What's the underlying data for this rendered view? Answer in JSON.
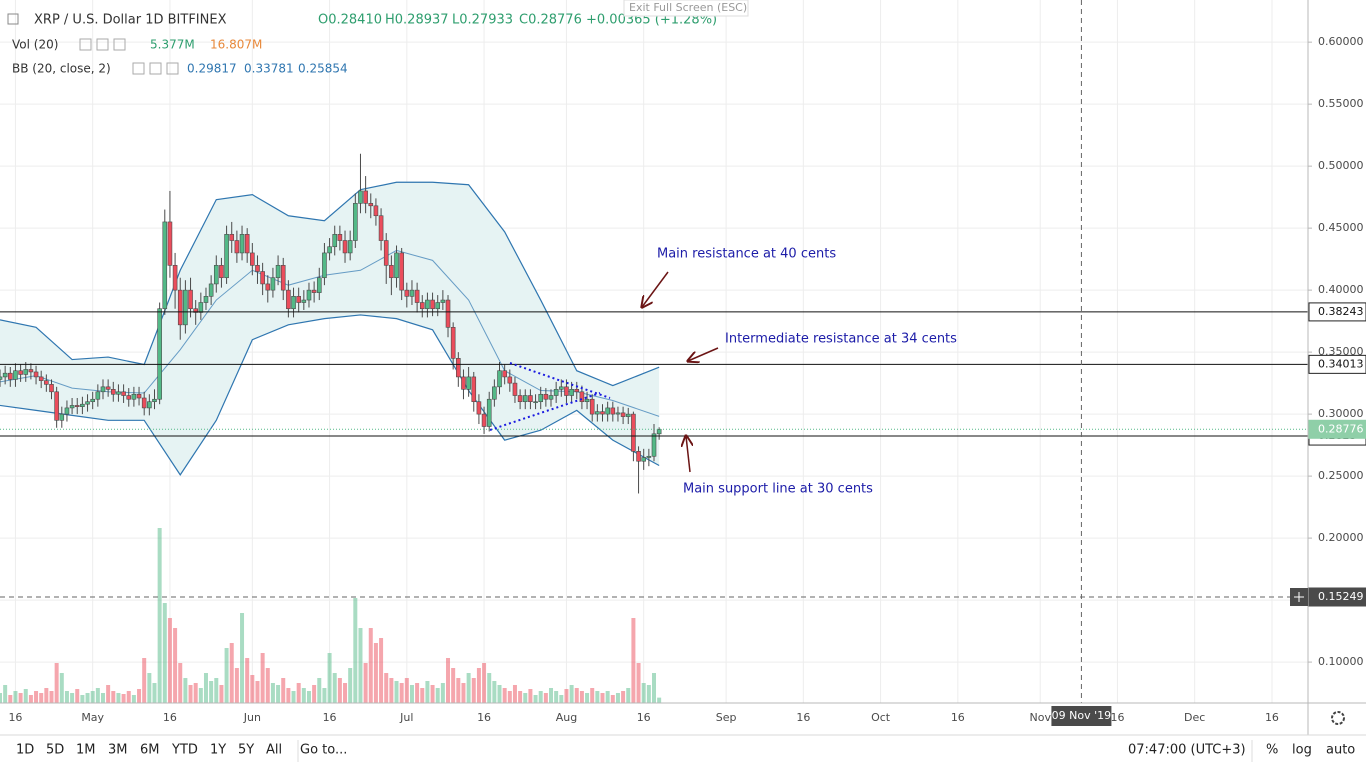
{
  "header": {
    "symbol": "XRP / U.S. Dollar  1D  BITFINEX",
    "open": "O0.28410",
    "high": "H0.28937",
    "low": "L0.27933",
    "close": "C0.28776",
    "change": "+0.00365 (+1.28%)",
    "exit_fullscreen": "Exit Full Screen (ESC)",
    "vol_label": "Vol (20)",
    "vol_value": "5.377M",
    "vol_ma": "16.807M",
    "bb_label": "BB (20, close, 2)",
    "bb_basis": "0.29817",
    "bb_upper": "0.33781",
    "bb_lower": "0.25854"
  },
  "toolbar": {
    "ranges": [
      "1D",
      "5D",
      "1M",
      "3M",
      "6M",
      "YTD",
      "1Y",
      "5Y",
      "All"
    ],
    "goto": "Go to...",
    "time": "07:47:00 (UTC+3)",
    "percent": "%",
    "log": "log",
    "auto": "auto"
  },
  "chart_data": {
    "type": "candlestick",
    "up_color": "#53b987",
    "down_color": "#eb4d5c",
    "x": [
      "2019-04-13",
      "2019-04-14",
      "2019-04-15",
      "2019-04-16",
      "2019-04-17",
      "2019-04-18",
      "2019-04-19",
      "2019-04-20",
      "2019-04-21",
      "2019-04-22",
      "2019-04-23",
      "2019-04-24",
      "2019-04-25",
      "2019-04-26",
      "2019-04-27",
      "2019-04-28",
      "2019-04-29",
      "2019-04-30",
      "2019-05-01",
      "2019-05-02",
      "2019-05-03",
      "2019-05-04",
      "2019-05-05",
      "2019-05-06",
      "2019-05-07",
      "2019-05-08",
      "2019-05-09",
      "2019-05-10",
      "2019-05-11",
      "2019-05-12",
      "2019-05-13",
      "2019-05-14",
      "2019-05-15",
      "2019-05-16",
      "2019-05-17",
      "2019-05-18",
      "2019-05-19",
      "2019-05-20",
      "2019-05-21",
      "2019-05-22",
      "2019-05-23",
      "2019-05-24",
      "2019-05-25",
      "2019-05-26",
      "2019-05-27",
      "2019-05-28",
      "2019-05-29",
      "2019-05-30",
      "2019-05-31",
      "2019-06-01",
      "2019-06-02",
      "2019-06-03",
      "2019-06-04",
      "2019-06-05",
      "2019-06-06",
      "2019-06-07",
      "2019-06-08",
      "2019-06-09",
      "2019-06-10",
      "2019-06-11",
      "2019-06-12",
      "2019-06-13",
      "2019-06-14",
      "2019-06-15",
      "2019-06-16",
      "2019-06-17",
      "2019-06-18",
      "2019-06-19",
      "2019-06-20",
      "2019-06-21",
      "2019-06-22",
      "2019-06-23",
      "2019-06-24",
      "2019-06-25",
      "2019-06-26",
      "2019-06-27",
      "2019-06-28",
      "2019-06-29",
      "2019-06-30",
      "2019-07-01",
      "2019-07-02",
      "2019-07-03",
      "2019-07-04",
      "2019-07-05",
      "2019-07-06",
      "2019-07-07",
      "2019-07-08",
      "2019-07-09",
      "2019-07-10",
      "2019-07-11",
      "2019-07-12",
      "2019-07-13",
      "2019-07-14",
      "2019-07-15",
      "2019-07-16",
      "2019-07-17",
      "2019-07-18",
      "2019-07-19",
      "2019-07-20",
      "2019-07-21",
      "2019-07-22",
      "2019-07-23",
      "2019-07-24",
      "2019-07-25",
      "2019-07-26",
      "2019-07-27",
      "2019-07-28",
      "2019-07-29",
      "2019-07-30",
      "2019-07-31",
      "2019-08-01",
      "2019-08-02",
      "2019-08-03",
      "2019-08-04",
      "2019-08-05",
      "2019-08-06",
      "2019-08-07",
      "2019-08-08",
      "2019-08-09",
      "2019-08-10",
      "2019-08-11",
      "2019-08-12",
      "2019-08-13",
      "2019-08-14",
      "2019-08-15",
      "2019-08-16",
      "2019-08-17",
      "2019-08-18",
      "2019-08-19"
    ],
    "candles": [
      [
        0.328,
        0.336,
        0.322,
        0.33
      ],
      [
        0.33,
        0.339,
        0.324,
        0.333
      ],
      [
        0.333,
        0.338,
        0.322,
        0.328
      ],
      [
        0.328,
        0.341,
        0.322,
        0.335
      ],
      [
        0.335,
        0.34,
        0.326,
        0.332
      ],
      [
        0.332,
        0.342,
        0.326,
        0.336
      ],
      [
        0.336,
        0.341,
        0.328,
        0.334
      ],
      [
        0.334,
        0.339,
        0.324,
        0.33
      ],
      [
        0.33,
        0.335,
        0.321,
        0.327
      ],
      [
        0.327,
        0.332,
        0.318,
        0.324
      ],
      [
        0.324,
        0.328,
        0.312,
        0.318
      ],
      [
        0.318,
        0.322,
        0.289,
        0.295
      ],
      [
        0.295,
        0.306,
        0.289,
        0.3
      ],
      [
        0.3,
        0.311,
        0.294,
        0.305
      ],
      [
        0.305,
        0.313,
        0.3,
        0.307
      ],
      [
        0.307,
        0.313,
        0.3,
        0.306
      ],
      [
        0.306,
        0.314,
        0.3,
        0.308
      ],
      [
        0.308,
        0.316,
        0.302,
        0.31
      ],
      [
        0.31,
        0.318,
        0.304,
        0.312
      ],
      [
        0.312,
        0.324,
        0.306,
        0.318
      ],
      [
        0.318,
        0.328,
        0.312,
        0.322
      ],
      [
        0.322,
        0.328,
        0.314,
        0.32
      ],
      [
        0.32,
        0.326,
        0.31,
        0.316
      ],
      [
        0.316,
        0.324,
        0.31,
        0.318
      ],
      [
        0.318,
        0.324,
        0.309,
        0.315
      ],
      [
        0.315,
        0.321,
        0.306,
        0.312
      ],
      [
        0.312,
        0.322,
        0.306,
        0.316
      ],
      [
        0.316,
        0.322,
        0.307,
        0.313
      ],
      [
        0.313,
        0.318,
        0.299,
        0.305
      ],
      [
        0.305,
        0.316,
        0.299,
        0.31
      ],
      [
        0.31,
        0.32,
        0.304,
        0.312
      ],
      [
        0.312,
        0.39,
        0.308,
        0.385
      ],
      [
        0.385,
        0.465,
        0.38,
        0.455
      ],
      [
        0.455,
        0.48,
        0.41,
        0.42
      ],
      [
        0.42,
        0.43,
        0.385,
        0.4
      ],
      [
        0.4,
        0.41,
        0.36,
        0.372
      ],
      [
        0.372,
        0.408,
        0.365,
        0.4
      ],
      [
        0.4,
        0.41,
        0.378,
        0.385
      ],
      [
        0.385,
        0.392,
        0.372,
        0.382
      ],
      [
        0.382,
        0.398,
        0.376,
        0.39
      ],
      [
        0.39,
        0.402,
        0.384,
        0.395
      ],
      [
        0.395,
        0.412,
        0.388,
        0.405
      ],
      [
        0.405,
        0.428,
        0.398,
        0.42
      ],
      [
        0.42,
        0.426,
        0.402,
        0.41
      ],
      [
        0.41,
        0.452,
        0.405,
        0.445
      ],
      [
        0.445,
        0.455,
        0.43,
        0.44
      ],
      [
        0.44,
        0.448,
        0.422,
        0.43
      ],
      [
        0.43,
        0.452,
        0.424,
        0.445
      ],
      [
        0.445,
        0.45,
        0.422,
        0.43
      ],
      [
        0.43,
        0.438,
        0.412,
        0.42
      ],
      [
        0.42,
        0.428,
        0.405,
        0.415
      ],
      [
        0.415,
        0.422,
        0.396,
        0.405
      ],
      [
        0.405,
        0.412,
        0.39,
        0.4
      ],
      [
        0.4,
        0.418,
        0.394,
        0.41
      ],
      [
        0.41,
        0.428,
        0.404,
        0.42
      ],
      [
        0.42,
        0.426,
        0.392,
        0.4
      ],
      [
        0.4,
        0.408,
        0.378,
        0.385
      ],
      [
        0.385,
        0.402,
        0.378,
        0.395
      ],
      [
        0.395,
        0.402,
        0.382,
        0.39
      ],
      [
        0.39,
        0.4,
        0.384,
        0.392
      ],
      [
        0.392,
        0.406,
        0.386,
        0.4
      ],
      [
        0.4,
        0.407,
        0.39,
        0.398
      ],
      [
        0.398,
        0.418,
        0.392,
        0.41
      ],
      [
        0.41,
        0.438,
        0.404,
        0.43
      ],
      [
        0.43,
        0.442,
        0.424,
        0.435
      ],
      [
        0.435,
        0.452,
        0.428,
        0.445
      ],
      [
        0.445,
        0.452,
        0.432,
        0.44
      ],
      [
        0.44,
        0.448,
        0.422,
        0.43
      ],
      [
        0.43,
        0.448,
        0.424,
        0.44
      ],
      [
        0.44,
        0.478,
        0.434,
        0.47
      ],
      [
        0.47,
        0.51,
        0.462,
        0.48
      ],
      [
        0.48,
        0.492,
        0.462,
        0.47
      ],
      [
        0.47,
        0.478,
        0.458,
        0.468
      ],
      [
        0.468,
        0.474,
        0.452,
        0.46
      ],
      [
        0.46,
        0.466,
        0.432,
        0.44
      ],
      [
        0.44,
        0.446,
        0.405,
        0.42
      ],
      [
        0.42,
        0.428,
        0.396,
        0.41
      ],
      [
        0.41,
        0.436,
        0.402,
        0.43
      ],
      [
        0.43,
        0.434,
        0.392,
        0.4
      ],
      [
        0.4,
        0.406,
        0.386,
        0.395
      ],
      [
        0.395,
        0.408,
        0.388,
        0.4
      ],
      [
        0.4,
        0.406,
        0.382,
        0.39
      ],
      [
        0.39,
        0.396,
        0.378,
        0.385
      ],
      [
        0.385,
        0.398,
        0.378,
        0.392
      ],
      [
        0.392,
        0.398,
        0.379,
        0.385
      ],
      [
        0.385,
        0.396,
        0.379,
        0.39
      ],
      [
        0.39,
        0.4,
        0.384,
        0.392
      ],
      [
        0.392,
        0.396,
        0.362,
        0.37
      ],
      [
        0.37,
        0.374,
        0.336,
        0.345
      ],
      [
        0.345,
        0.35,
        0.322,
        0.33
      ],
      [
        0.33,
        0.336,
        0.312,
        0.32
      ],
      [
        0.32,
        0.338,
        0.314,
        0.33
      ],
      [
        0.33,
        0.334,
        0.302,
        0.31
      ],
      [
        0.31,
        0.316,
        0.292,
        0.3
      ],
      [
        0.3,
        0.306,
        0.284,
        0.29
      ],
      [
        0.29,
        0.318,
        0.286,
        0.312
      ],
      [
        0.312,
        0.328,
        0.306,
        0.322
      ],
      [
        0.322,
        0.342,
        0.316,
        0.335
      ],
      [
        0.335,
        0.34,
        0.324,
        0.33
      ],
      [
        0.33,
        0.336,
        0.318,
        0.325
      ],
      [
        0.325,
        0.33,
        0.309,
        0.315
      ],
      [
        0.315,
        0.32,
        0.304,
        0.31
      ],
      [
        0.31,
        0.32,
        0.304,
        0.315
      ],
      [
        0.315,
        0.32,
        0.304,
        0.31
      ],
      [
        0.31,
        0.316,
        0.304,
        0.31
      ],
      [
        0.31,
        0.322,
        0.304,
        0.316
      ],
      [
        0.316,
        0.321,
        0.306,
        0.312
      ],
      [
        0.312,
        0.32,
        0.306,
        0.315
      ],
      [
        0.315,
        0.326,
        0.309,
        0.32
      ],
      [
        0.32,
        0.328,
        0.314,
        0.322
      ],
      [
        0.322,
        0.328,
        0.309,
        0.315
      ],
      [
        0.315,
        0.326,
        0.309,
        0.32
      ],
      [
        0.32,
        0.326,
        0.312,
        0.318
      ],
      [
        0.318,
        0.323,
        0.304,
        0.31
      ],
      [
        0.31,
        0.318,
        0.304,
        0.312
      ],
      [
        0.312,
        0.316,
        0.294,
        0.3
      ],
      [
        0.3,
        0.308,
        0.294,
        0.302
      ],
      [
        0.302,
        0.308,
        0.294,
        0.3
      ],
      [
        0.3,
        0.31,
        0.294,
        0.305
      ],
      [
        0.305,
        0.31,
        0.294,
        0.3
      ],
      [
        0.3,
        0.306,
        0.294,
        0.301
      ],
      [
        0.301,
        0.306,
        0.292,
        0.298
      ],
      [
        0.298,
        0.305,
        0.292,
        0.3
      ],
      [
        0.3,
        0.302,
        0.262,
        0.27
      ],
      [
        0.27,
        0.274,
        0.236,
        0.262
      ],
      [
        0.262,
        0.272,
        0.255,
        0.265
      ],
      [
        0.265,
        0.272,
        0.258,
        0.266
      ],
      [
        0.266,
        0.292,
        0.262,
        0.28411
      ],
      [
        0.2841,
        0.28937,
        0.27933,
        0.28776
      ]
    ],
    "volumes": [
      10,
      18,
      8,
      12,
      10,
      14,
      8,
      12,
      10,
      15,
      12,
      40,
      30,
      12,
      10,
      14,
      8,
      10,
      12,
      15,
      10,
      18,
      12,
      10,
      9,
      12,
      8,
      14,
      45,
      30,
      20,
      175,
      100,
      85,
      75,
      40,
      25,
      18,
      20,
      15,
      30,
      22,
      25,
      18,
      55,
      60,
      35,
      90,
      45,
      28,
      22,
      50,
      35,
      20,
      18,
      25,
      15,
      12,
      20,
      15,
      12,
      18,
      25,
      15,
      50,
      30,
      25,
      20,
      35,
      105,
      75,
      40,
      75,
      60,
      65,
      30,
      25,
      22,
      20,
      25,
      18,
      20,
      15,
      22,
      18,
      15,
      20,
      45,
      35,
      25,
      20,
      30,
      25,
      35,
      40,
      30,
      22,
      18,
      15,
      12,
      18,
      12,
      10,
      14,
      8,
      12,
      10,
      15,
      12,
      8,
      14,
      18,
      15,
      12,
      10,
      15,
      12,
      10,
      12,
      8,
      10,
      12,
      15,
      85,
      40,
      20,
      18,
      30,
      5.377
    ],
    "volume_ylim": [
      0,
      180
    ],
    "bb": {
      "x": [
        "2019-04-13",
        "2019-04-20",
        "2019-04-27",
        "2019-05-04",
        "2019-05-11",
        "2019-05-18",
        "2019-05-25",
        "2019-06-01",
        "2019-06-08",
        "2019-06-15",
        "2019-06-22",
        "2019-06-29",
        "2019-07-06",
        "2019-07-13",
        "2019-07-20",
        "2019-07-27",
        "2019-08-03",
        "2019-08-10",
        "2019-08-19"
      ],
      "upper": [
        0.376,
        0.37,
        0.344,
        0.346,
        0.34,
        0.416,
        0.473,
        0.477,
        0.46,
        0.456,
        0.481,
        0.487,
        0.487,
        0.485,
        0.447,
        0.392,
        0.335,
        0.323,
        0.33781
      ],
      "basis": [
        0.326,
        0.331,
        0.321,
        0.318,
        0.317,
        0.352,
        0.392,
        0.416,
        0.404,
        0.412,
        0.416,
        0.432,
        0.424,
        0.392,
        0.335,
        0.319,
        0.318,
        0.311,
        0.29817
      ],
      "lower": [
        0.307,
        0.303,
        0.299,
        0.295,
        0.295,
        0.251,
        0.295,
        0.36,
        0.372,
        0.377,
        0.38,
        0.377,
        0.368,
        0.319,
        0.279,
        0.287,
        0.303,
        0.279,
        0.25854
      ],
      "color": "#2f76b0",
      "fill": "#e6f3f3"
    },
    "levels": [
      0.38243,
      0.34013,
      0.2823
    ],
    "last_price": 0.28776,
    "crosshair": {
      "x": "2019-11-09",
      "x_label": "09 Nov '19",
      "y": 0.15249
    },
    "xlim": [
      "2019-04-13",
      "2019-12-23"
    ],
    "ylim": [
      0.067,
      0.634
    ],
    "yticks": [
      {
        "value": 0.1,
        "label": "0.10000"
      },
      {
        "value": 0.15,
        "label": "0.15000"
      },
      {
        "value": 0.2,
        "label": "0.20000"
      },
      {
        "value": 0.25,
        "label": "0.25000"
      },
      {
        "value": 0.3,
        "label": "0.30000"
      },
      {
        "value": 0.35,
        "label": "0.35000"
      },
      {
        "value": 0.4,
        "label": "0.40000"
      },
      {
        "value": 0.45,
        "label": "0.45000"
      },
      {
        "value": 0.5,
        "label": "0.50000"
      },
      {
        "value": 0.55,
        "label": "0.55000"
      },
      {
        "value": 0.6,
        "label": "0.60000"
      }
    ],
    "xticks": [
      {
        "value": "2019-04-16",
        "label": "16"
      },
      {
        "value": "2019-05-01",
        "label": "May"
      },
      {
        "value": "2019-05-16",
        "label": "16"
      },
      {
        "value": "2019-06-01",
        "label": "Jun"
      },
      {
        "value": "2019-06-16",
        "label": "16"
      },
      {
        "value": "2019-07-01",
        "label": "Jul"
      },
      {
        "value": "2019-07-16",
        "label": "16"
      },
      {
        "value": "2019-08-01",
        "label": "Aug"
      },
      {
        "value": "2019-08-16",
        "label": "16"
      },
      {
        "value": "2019-09-01",
        "label": "Sep"
      },
      {
        "value": "2019-09-16",
        "label": "16"
      },
      {
        "value": "2019-10-01",
        "label": "Oct"
      },
      {
        "value": "2019-10-16",
        "label": "16"
      },
      {
        "value": "2019-11-01",
        "label": "Nov"
      },
      {
        "value": "2019-11-16",
        "label": "16"
      },
      {
        "value": "2019-12-01",
        "label": "Dec"
      },
      {
        "value": "2019-12-16",
        "label": "16"
      }
    ],
    "grid": true,
    "annotations": [
      "Main resistance at 40 cents",
      "Intermediate resistance at 34 cents",
      "Main support line at 30 cents"
    ]
  }
}
